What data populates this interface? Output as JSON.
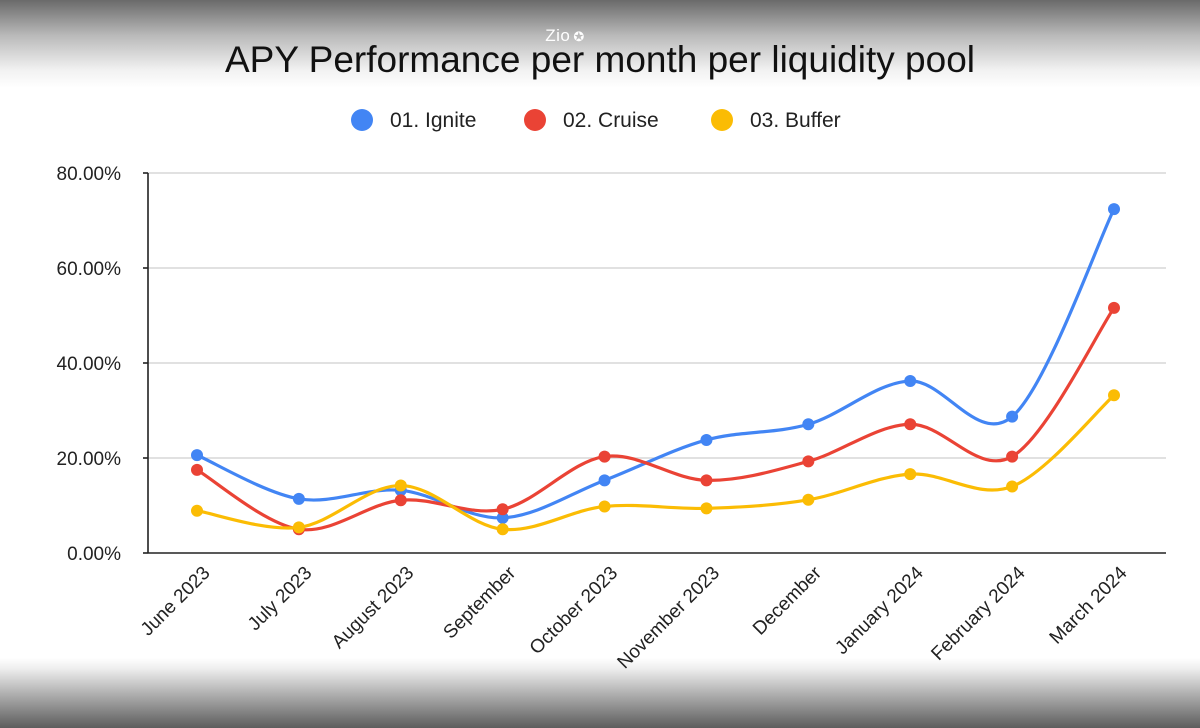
{
  "watermark": {
    "text": "Zio",
    "icon": "gear-icon"
  },
  "chart_data": {
    "type": "line",
    "title": "APY Performance per month per liquidity pool",
    "xlabel": "",
    "ylabel": "",
    "categories": [
      "June 2023",
      "July 2023",
      "August 2023",
      "September",
      "October 2023",
      "November 2023",
      "December",
      "January 2024",
      "February 2024",
      "March 2024"
    ],
    "ylim": [
      0,
      80
    ],
    "yticks": [
      0,
      20,
      40,
      60,
      80
    ],
    "ytick_labels": [
      "0.00%",
      "20.00%",
      "40.00%",
      "60.00%",
      "80.00%"
    ],
    "grid": true,
    "legend_position": "top",
    "smooth": true,
    "series": [
      {
        "name": "01. Ignite",
        "color": "#4285F4",
        "values": [
          20.6,
          11.4,
          13.2,
          7.4,
          15.3,
          23.8,
          27.1,
          36.2,
          28.7,
          72.4
        ]
      },
      {
        "name": "02. Cruise",
        "color": "#EA4335",
        "values": [
          17.5,
          5.0,
          11.1,
          9.2,
          20.3,
          15.3,
          19.3,
          27.1,
          20.3,
          51.6
        ]
      },
      {
        "name": "03. Buffer",
        "color": "#FBBC04",
        "values": [
          8.9,
          5.4,
          14.2,
          5.0,
          9.8,
          9.4,
          11.2,
          16.6,
          14.0,
          33.2
        ]
      }
    ]
  }
}
